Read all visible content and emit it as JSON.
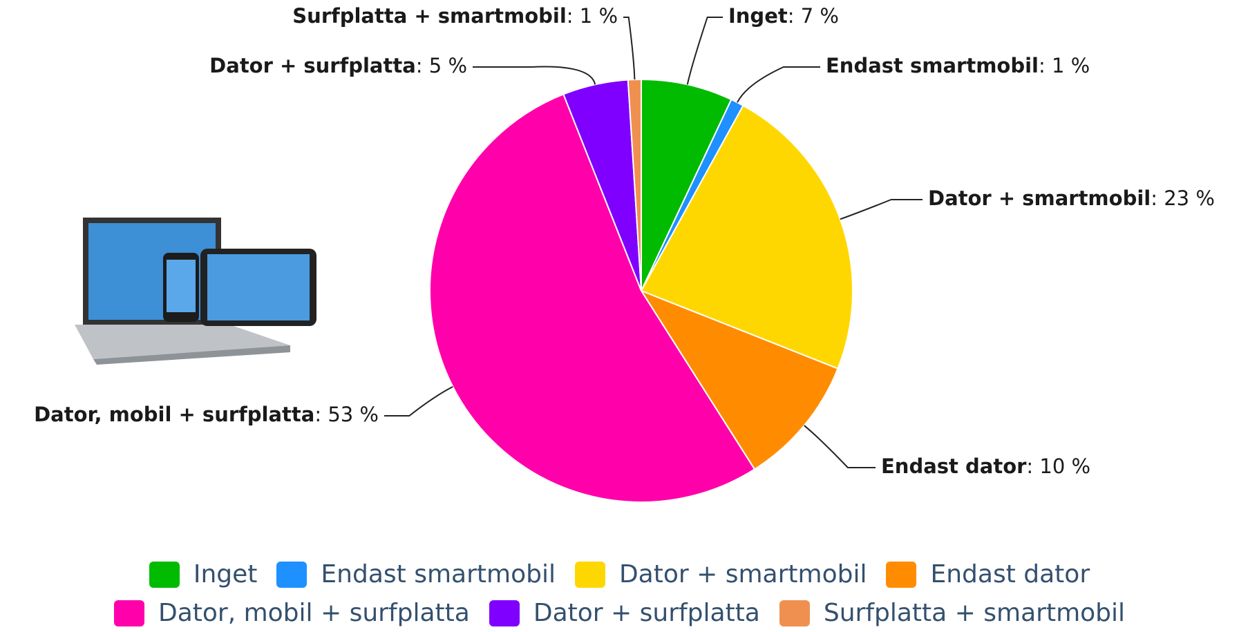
{
  "chart_data": {
    "type": "pie",
    "categories": [
      "Inget",
      "Endast smartmobil",
      "Dator + smartmobil",
      "Endast dator",
      "Dator, mobil + surfplatta",
      "Dator + surfplatta",
      "Surfplatta + smartmobil"
    ],
    "values": [
      7,
      1,
      23,
      10,
      53,
      5,
      1
    ],
    "value_labels": [
      ": 7 %",
      ": 1 %",
      ": 23 %",
      ": 10 %",
      ": 53 %",
      ": 5 %",
      ": 1 %"
    ],
    "colors": [
      "#00bb00",
      "#1e90ff",
      "#ffd700",
      "#ff8c00",
      "#ff00aa",
      "#7f00ff",
      "#f09050"
    ],
    "legend": "bottom"
  }
}
